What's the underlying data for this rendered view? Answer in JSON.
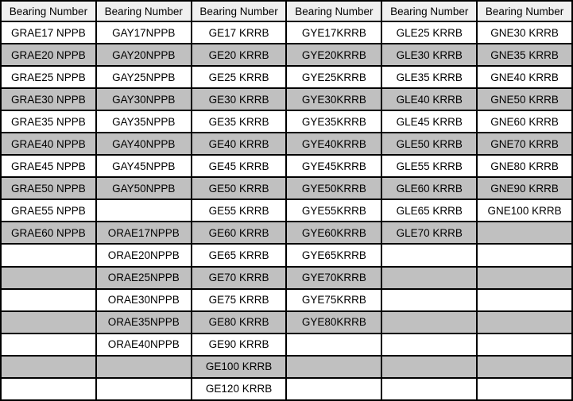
{
  "table": {
    "headers": [
      "Bearing Number",
      "Bearing Number",
      "Bearing Number",
      "Bearing Number",
      "Bearing Number",
      "Bearing Number"
    ],
    "rows": [
      [
        "GRAE17 NPPB",
        "GAY17NPPB",
        "GE17 KRRB",
        "GYE17KRRB",
        "GLE25 KRRB",
        "GNE30 KRRB"
      ],
      [
        "GRAE20 NPPB",
        "GAY20NPPB",
        "GE20 KRRB",
        "GYE20KRRB",
        "GLE30 KRRB",
        "GNE35 KRRB"
      ],
      [
        "GRAE25 NPPB",
        "GAY25NPPB",
        "GE25 KRRB",
        "GYE25KRRB",
        "GLE35 KRRB",
        "GNE40 KRRB"
      ],
      [
        "GRAE30 NPPB",
        "GAY30NPPB",
        "GE30 KRRB",
        "GYE30KRRB",
        "GLE40 KRRB",
        "GNE50 KRRB"
      ],
      [
        "GRAE35 NPPB",
        "GAY35NPPB",
        "GE35 KRRB",
        "GYE35KRRB",
        "GLE45 KRRB",
        "GNE60 KRRB"
      ],
      [
        "GRAE40 NPPB",
        "GAY40NPPB",
        "GE40 KRRB",
        "GYE40KRRB",
        "GLE50 KRRB",
        "GNE70 KRRB"
      ],
      [
        "GRAE45 NPPB",
        "GAY45NPPB",
        "GE45 KRRB",
        "GYE45KRRB",
        "GLE55 KRRB",
        "GNE80 KRRB"
      ],
      [
        "GRAE50 NPPB",
        "GAY50NPPB",
        "GE50 KRRB",
        "GYE50KRRB",
        "GLE60 KRRB",
        "GNE90 KRRB"
      ],
      [
        "GRAE55 NPPB",
        "",
        "GE55 KRRB",
        "GYE55KRRB",
        "GLE65 KRRB",
        "GNE100 KRRB"
      ],
      [
        "GRAE60 NPPB",
        "ORAE17NPPB",
        "GE60 KRRB",
        "GYE60KRRB",
        "GLE70 KRRB",
        ""
      ],
      [
        "",
        "ORAE20NPPB",
        "GE65 KRRB",
        "GYE65KRRB",
        "",
        ""
      ],
      [
        "",
        "ORAE25NPPB",
        "GE70 KRRB",
        "GYE70KRRB",
        "",
        ""
      ],
      [
        "",
        "ORAE30NPPB",
        "GE75 KRRB",
        "GYE75KRRB",
        "",
        ""
      ],
      [
        "",
        "ORAE35NPPB",
        "GE80 KRRB",
        "GYE80KRRB",
        "",
        ""
      ],
      [
        "",
        "ORAE40NPPB",
        "GE90 KRRB",
        "",
        "",
        ""
      ],
      [
        "",
        "",
        "GE100 KRRB",
        "",
        "",
        ""
      ],
      [
        "",
        "",
        "GE120 KRRB",
        "",
        "",
        ""
      ]
    ]
  },
  "colors": {
    "border": "#000000",
    "header_bg": "#f0f0f0",
    "row_bg": "#ffffff",
    "row_alt_bg": "#c0c0c0",
    "text": "#000000"
  }
}
